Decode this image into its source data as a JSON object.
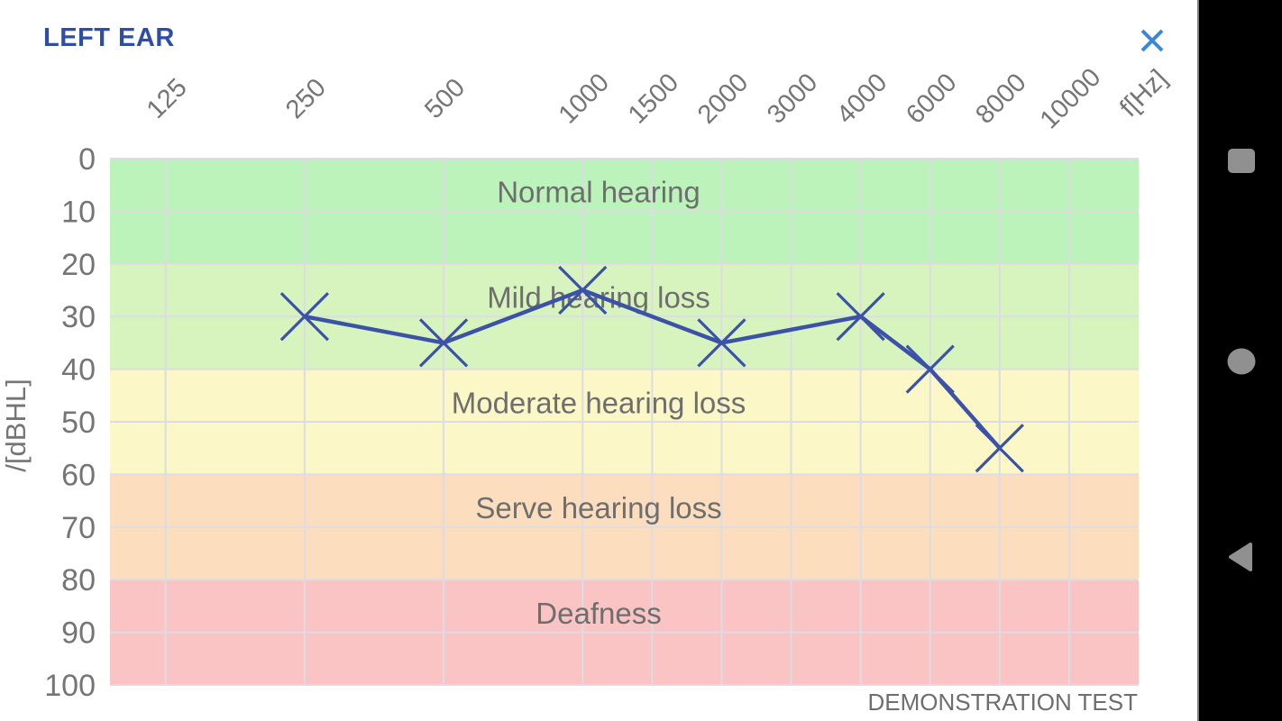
{
  "app": {
    "title": "LEFT EAR",
    "watermark": "DEMONSTRATION TEST"
  },
  "colors": {
    "title": "#2e4da6",
    "close_icon": "#3c87d8",
    "series_line": "#3b52a7",
    "grid_line": "#dcdce2",
    "axis_text": "#757575",
    "band_text": "#6e6e6e",
    "nav_background": "#000000",
    "nav_icon": "#909090"
  },
  "chart_data": {
    "type": "line",
    "x_axis_label": "f[Hz]",
    "y_axis_label": "/[dBHL]",
    "x_categories": [
      "125",
      "250",
      "500",
      "1000",
      "1500",
      "2000",
      "3000",
      "4000",
      "6000",
      "8000",
      "10000"
    ],
    "y_ticks": [
      0,
      10,
      20,
      30,
      40,
      50,
      60,
      70,
      80,
      90,
      100
    ],
    "y_range": [
      0,
      100
    ],
    "grid": true,
    "legend": "none",
    "bands": [
      {
        "label": "Normal hearing",
        "from": 0,
        "to": 20,
        "color": "#bbf3bb"
      },
      {
        "label": "Mild hearing loss",
        "from": 20,
        "to": 40,
        "color": "#d8f4be"
      },
      {
        "label": "Moderate hearing loss",
        "from": 40,
        "to": 60,
        "color": "#fbf7c6"
      },
      {
        "label": "Serve hearing loss",
        "from": 60,
        "to": 80,
        "color": "#fcdebe"
      },
      {
        "label": "Deafness",
        "from": 80,
        "to": 100,
        "color": "#fac4c4"
      }
    ],
    "series": [
      {
        "name": "left-ear-threshold",
        "marker": "x",
        "color": "#3b52a7",
        "points": [
          {
            "f": "250",
            "db": 30
          },
          {
            "f": "500",
            "db": 35
          },
          {
            "f": "1000",
            "db": 25
          },
          {
            "f": "2000",
            "db": 35
          },
          {
            "f": "4000",
            "db": 30
          },
          {
            "f": "6000",
            "db": 40
          },
          {
            "f": "8000",
            "db": 55
          }
        ]
      }
    ]
  },
  "nav_bar": {
    "buttons": [
      {
        "label": "recents",
        "icon": "square"
      },
      {
        "label": "home",
        "icon": "circle"
      },
      {
        "label": "back",
        "icon": "triangle-left"
      }
    ]
  }
}
